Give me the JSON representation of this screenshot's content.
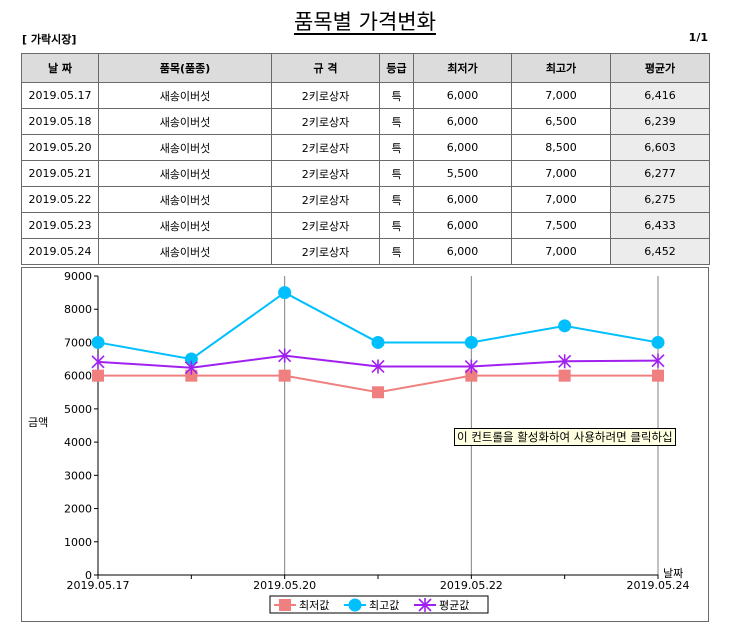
{
  "page_title": "품목별 가격변화",
  "market_label": "[ 가락시장]",
  "page_indicator": "1/1",
  "table": {
    "columns": [
      "날 짜",
      "품목(품종)",
      "규 격",
      "등급",
      "최저가",
      "최고가",
      "평균가"
    ],
    "rows": [
      [
        "2019.05.17",
        "새송이버섯",
        "2키로상자",
        "특",
        "6,000",
        "7,000",
        "6,416"
      ],
      [
        "2019.05.18",
        "새송이버섯",
        "2키로상자",
        "특",
        "6,000",
        "6,500",
        "6,239"
      ],
      [
        "2019.05.20",
        "새송이버섯",
        "2키로상자",
        "특",
        "6,000",
        "8,500",
        "6,603"
      ],
      [
        "2019.05.21",
        "새송이버섯",
        "2키로상자",
        "특",
        "5,500",
        "7,000",
        "6,277"
      ],
      [
        "2019.05.22",
        "새송이버섯",
        "2키로상자",
        "특",
        "6,000",
        "7,000",
        "6,275"
      ],
      [
        "2019.05.23",
        "새송이버섯",
        "2키로상자",
        "특",
        "6,000",
        "7,500",
        "6,433"
      ],
      [
        "2019.05.24",
        "새송이버섯",
        "2키로상자",
        "특",
        "6,000",
        "7,000",
        "6,452"
      ]
    ]
  },
  "activation_tooltip": "이 컨트롤을 활성화하여 사용하려면 클릭하십",
  "chart_data": {
    "type": "line",
    "x": [
      "2019.05.17",
      "2019.05.18",
      "2019.05.20",
      "2019.05.21",
      "2019.05.22",
      "2019.05.23",
      "2019.05.24"
    ],
    "x_tick_labels": [
      "2019.05.17",
      "",
      "2019.05.20",
      "",
      "2019.05.22",
      "",
      "2019.05.24"
    ],
    "xlabel": "날짜",
    "ylabel": "금액",
    "ylim": [
      0,
      9000
    ],
    "y_ticks": [
      0,
      1000,
      2000,
      3000,
      4000,
      5000,
      6000,
      7000,
      8000,
      9000
    ],
    "grid": "vertical",
    "legend_position": "bottom",
    "series": [
      {
        "name": "최저값",
        "marker": "square",
        "color": "#f08080",
        "values": [
          6000,
          6000,
          6000,
          5500,
          6000,
          6000,
          6000
        ]
      },
      {
        "name": "최고값",
        "marker": "circle",
        "color": "#00bfff",
        "values": [
          7000,
          6500,
          8500,
          7000,
          7000,
          7500,
          7000
        ]
      },
      {
        "name": "평균값",
        "marker": "star",
        "color": "#a020f0",
        "values": [
          6416,
          6239,
          6603,
          6277,
          6275,
          6433,
          6452
        ]
      }
    ]
  }
}
